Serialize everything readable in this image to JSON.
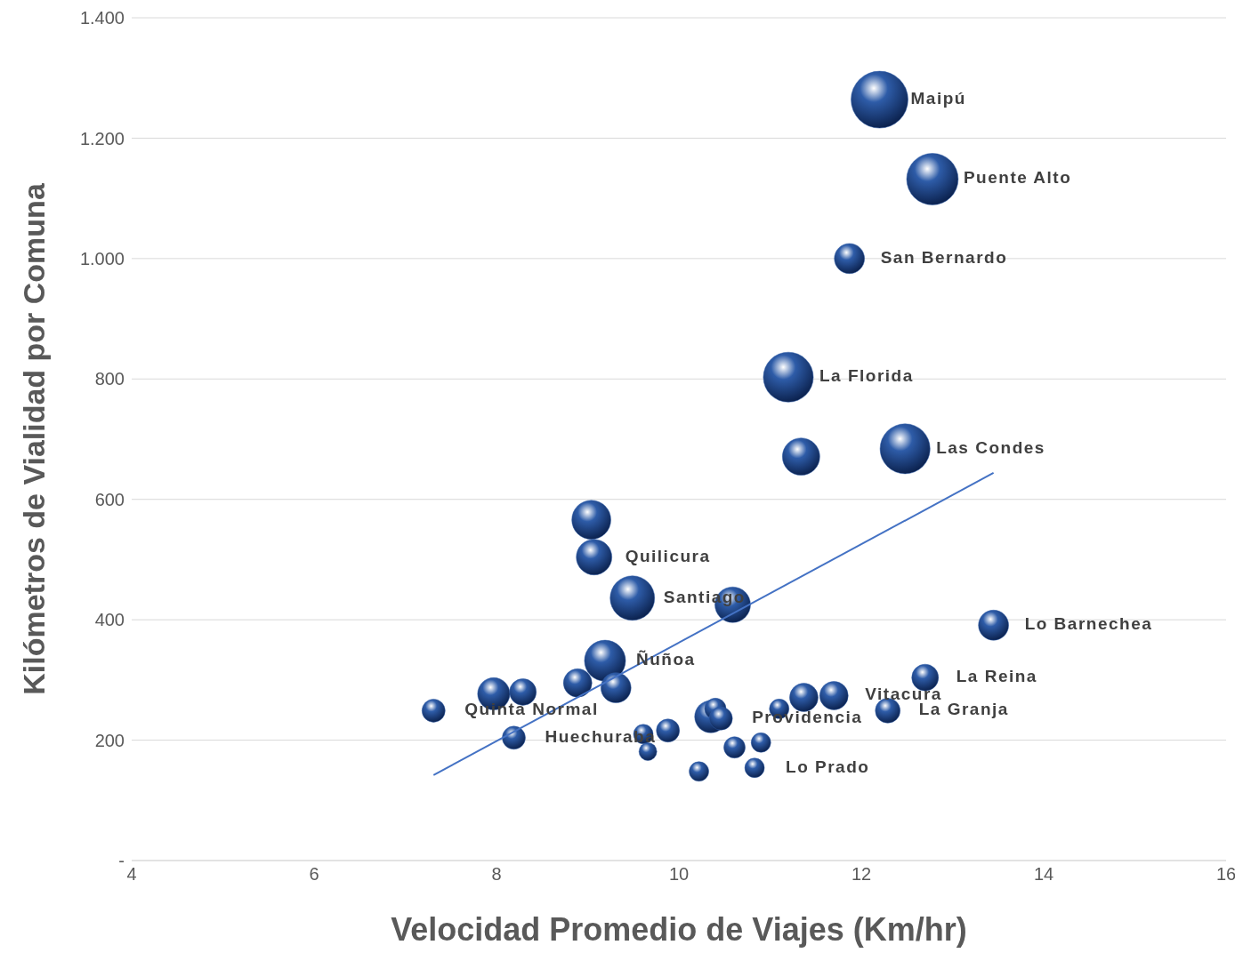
{
  "chart_data": {
    "type": "bubble",
    "xlabel": "Velocidad Promedio de Viajes (Km/hr)",
    "ylabel": "Kilómetros de Vialidad por Comuna",
    "xlim": [
      4,
      16
    ],
    "xticks": [
      4,
      6,
      8,
      10,
      12,
      14,
      16
    ],
    "ylim": [
      0,
      1400
    ],
    "yticks": [
      {
        "value": 0,
        "label": "-"
      },
      200,
      400,
      600,
      800,
      {
        "value": 1000,
        "label": "1.000"
      },
      {
        "value": 1200,
        "label": "1.200"
      },
      {
        "value": 1400,
        "label": "1.400"
      }
    ],
    "grid": "y",
    "legend": false,
    "series": [
      {
        "color": "#2e5ca8",
        "x": [
          12.2,
          12.78,
          11.87,
          11.2,
          11.34,
          12.48,
          9.04,
          9.07,
          9.49,
          10.59,
          13.45,
          9.19,
          9.31,
          8.89,
          7.97,
          8.29,
          7.31,
          8.19,
          9.61,
          9.88,
          9.66,
          10.22,
          10.83,
          10.61,
          10.9,
          10.35,
          10.4,
          10.46,
          11.1,
          11.37,
          11.7,
          12.29,
          12.7
        ],
        "values": [
          1264,
          1132,
          1000,
          803,
          671,
          684,
          566,
          504,
          436,
          425,
          391,
          332,
          287,
          295,
          277,
          280,
          249,
          204,
          210,
          216,
          181,
          148,
          154,
          188,
          196,
          239,
          252,
          236,
          252,
          271,
          274,
          249,
          304
        ],
        "sizes": [
          1,
          0.82,
          0.28,
          0.77,
          0.43,
          0.77,
          0.47,
          0.39,
          0.61,
          0.39,
          0.28,
          0.52,
          0.28,
          0.25,
          0.32,
          0.22,
          0.165,
          0.165,
          0.118,
          0.165,
          0.098,
          0.118,
          0.118,
          0.141,
          0.118,
          0.32,
          0.141,
          0.165,
          0.118,
          0.25,
          0.25,
          0.19,
          0.22
        ]
      },
      {
        "type": "line",
        "color": "#4472c4",
        "x": [
          7.31,
          13.45
        ],
        "values": [
          142,
          644
        ]
      }
    ],
    "annotations": [
      {
        "text": "Maipú",
        "x": 12.2,
        "y": 1264
      },
      {
        "text": "Puente Alto",
        "x": 12.78,
        "y": 1132
      },
      {
        "text": "San Bernardo",
        "x": 11.87,
        "y": 1000
      },
      {
        "text": "La Florida",
        "x": 11.2,
        "y": 803
      },
      {
        "text": "Las Condes",
        "x": 12.48,
        "y": 684
      },
      {
        "text": "Quilicura",
        "x": 9.07,
        "y": 504
      },
      {
        "text": "Santiago",
        "x": 9.49,
        "y": 436
      },
      {
        "text": "Lo Barnechea",
        "x": 13.45,
        "y": 391
      },
      {
        "text": "Ñuñoa",
        "x": 9.19,
        "y": 332
      },
      {
        "text": "Quinta Normal",
        "x": 7.31,
        "y": 249
      },
      {
        "text": "Huechuraba",
        "x": 8.19,
        "y": 204
      },
      {
        "text": "Lo Prado",
        "x": 10.83,
        "y": 154
      },
      {
        "text": "Providencia",
        "x": 10.46,
        "y": 236
      },
      {
        "text": "Vitacura",
        "x": 11.7,
        "y": 274
      },
      {
        "text": "La Granja",
        "x": 12.29,
        "y": 249
      },
      {
        "text": "La Reina",
        "x": 12.7,
        "y": 304
      }
    ]
  }
}
